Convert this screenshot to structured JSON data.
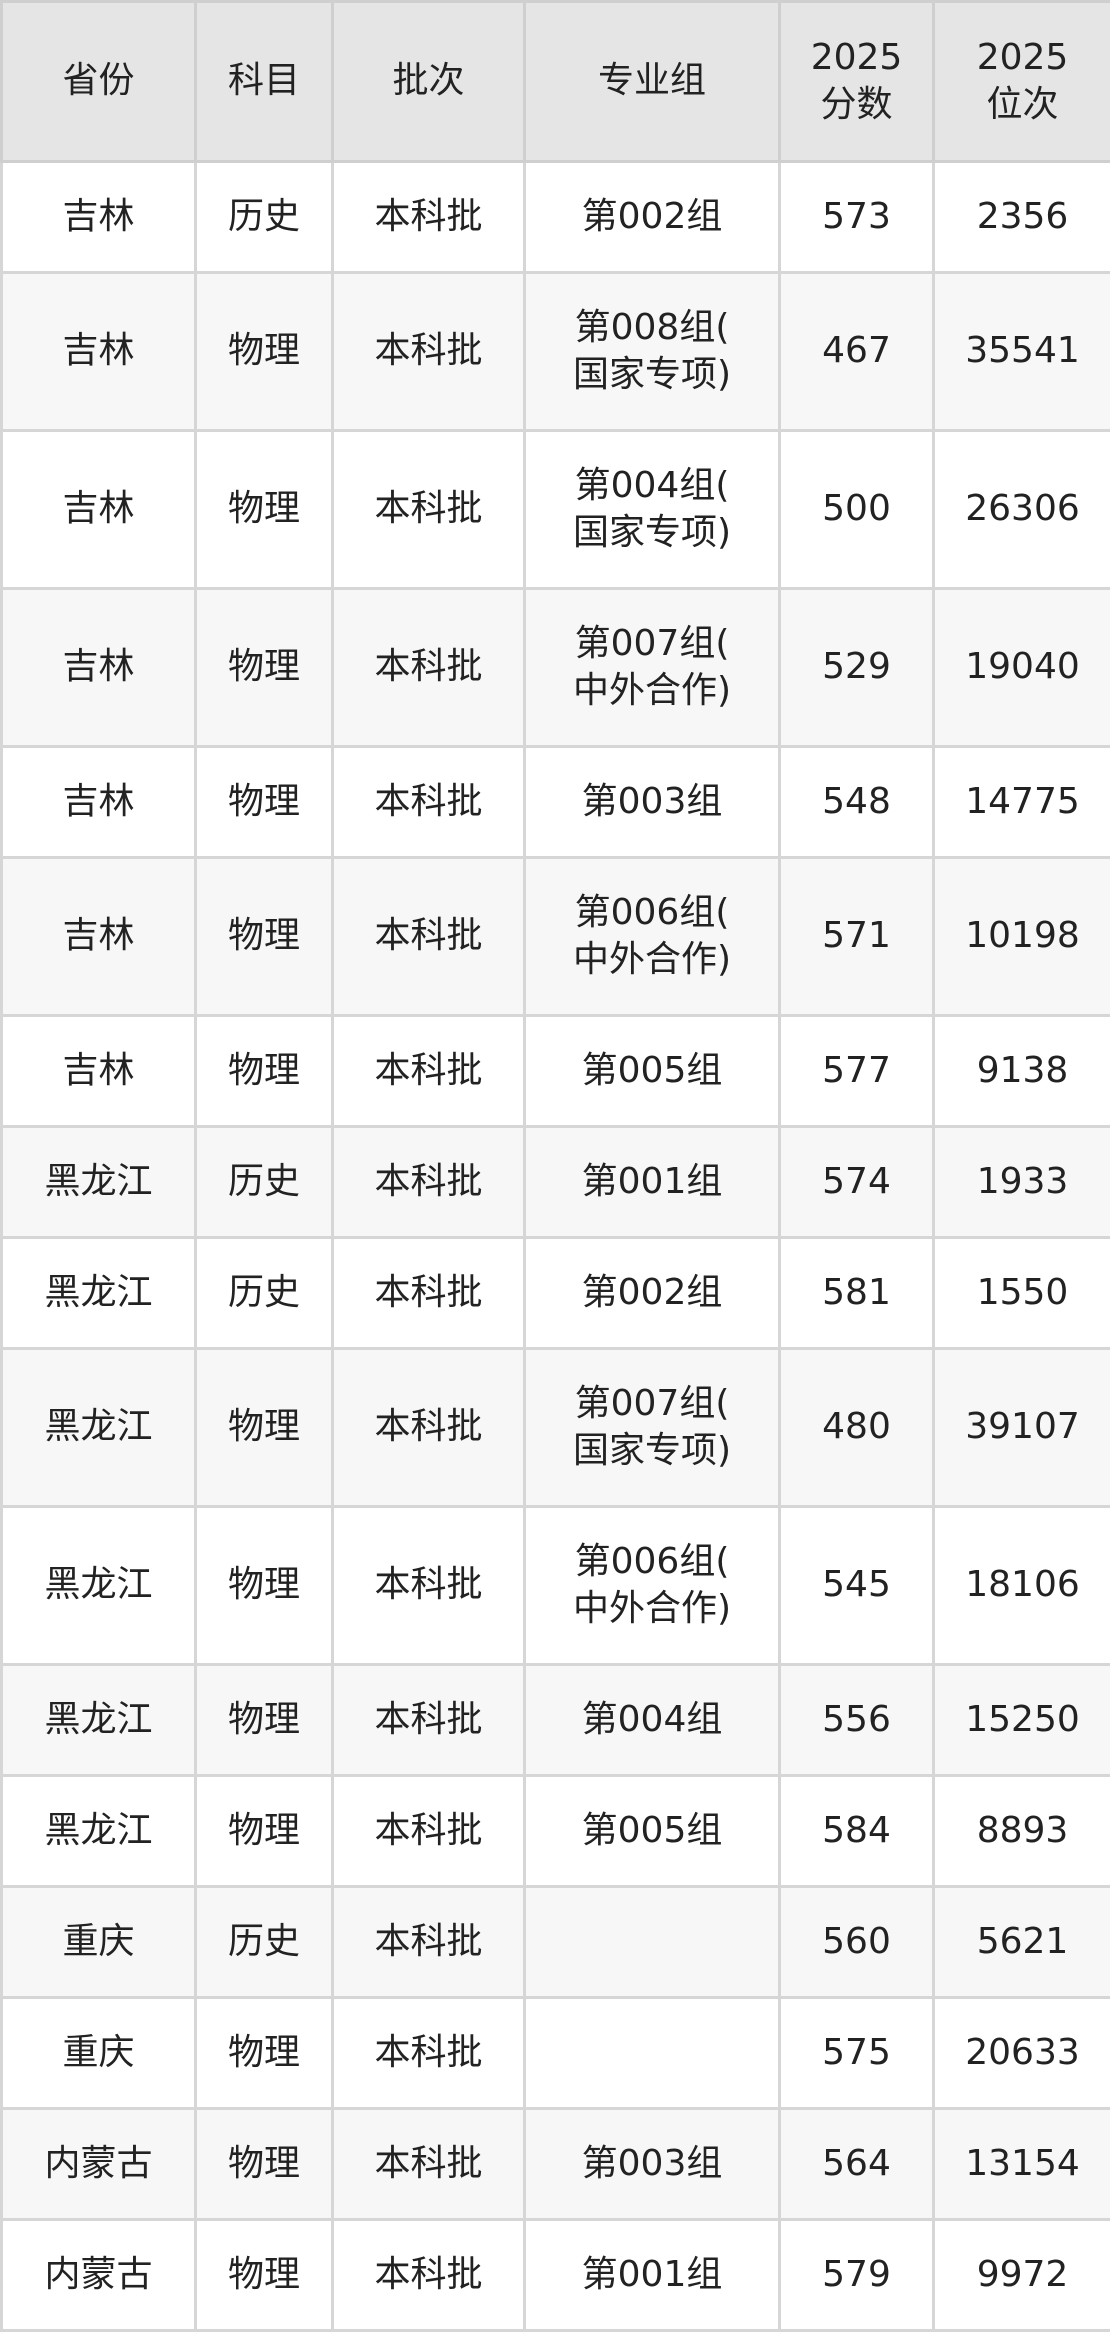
{
  "table": {
    "headers": [
      "省份",
      "科目",
      "批次",
      "专业组",
      "2025\n分数",
      "2025\n位次"
    ],
    "rows": [
      [
        "吉林",
        "历史",
        "本科批",
        "第002组",
        "573",
        "2356"
      ],
      [
        "吉林",
        "物理",
        "本科批",
        "第008组(\n国家专项)",
        "467",
        "35541"
      ],
      [
        "吉林",
        "物理",
        "本科批",
        "第004组(\n国家专项)",
        "500",
        "26306"
      ],
      [
        "吉林",
        "物理",
        "本科批",
        "第007组(\n中外合作)",
        "529",
        "19040"
      ],
      [
        "吉林",
        "物理",
        "本科批",
        "第003组",
        "548",
        "14775"
      ],
      [
        "吉林",
        "物理",
        "本科批",
        "第006组(\n中外合作)",
        "571",
        "10198"
      ],
      [
        "吉林",
        "物理",
        "本科批",
        "第005组",
        "577",
        "9138"
      ],
      [
        "黑龙江",
        "历史",
        "本科批",
        "第001组",
        "574",
        "1933"
      ],
      [
        "黑龙江",
        "历史",
        "本科批",
        "第002组",
        "581",
        "1550"
      ],
      [
        "黑龙江",
        "物理",
        "本科批",
        "第007组(\n国家专项)",
        "480",
        "39107"
      ],
      [
        "黑龙江",
        "物理",
        "本科批",
        "第006组(\n中外合作)",
        "545",
        "18106"
      ],
      [
        "黑龙江",
        "物理",
        "本科批",
        "第004组",
        "556",
        "15250"
      ],
      [
        "黑龙江",
        "物理",
        "本科批",
        "第005组",
        "584",
        "8893"
      ],
      [
        "重庆",
        "历史",
        "本科批",
        "",
        "560",
        "5621"
      ],
      [
        "重庆",
        "物理",
        "本科批",
        "",
        "575",
        "20633"
      ],
      [
        "内蒙古",
        "物理",
        "本科批",
        "第003组",
        "564",
        "13154"
      ],
      [
        "内蒙古",
        "物理",
        "本科批",
        "第001组",
        "579",
        "9972"
      ]
    ]
  },
  "colors": {
    "header_bg": "#e5e5e5",
    "row_alt_bg": "#f7f7f7",
    "border": "#d6d6d6",
    "text": "#222222"
  }
}
